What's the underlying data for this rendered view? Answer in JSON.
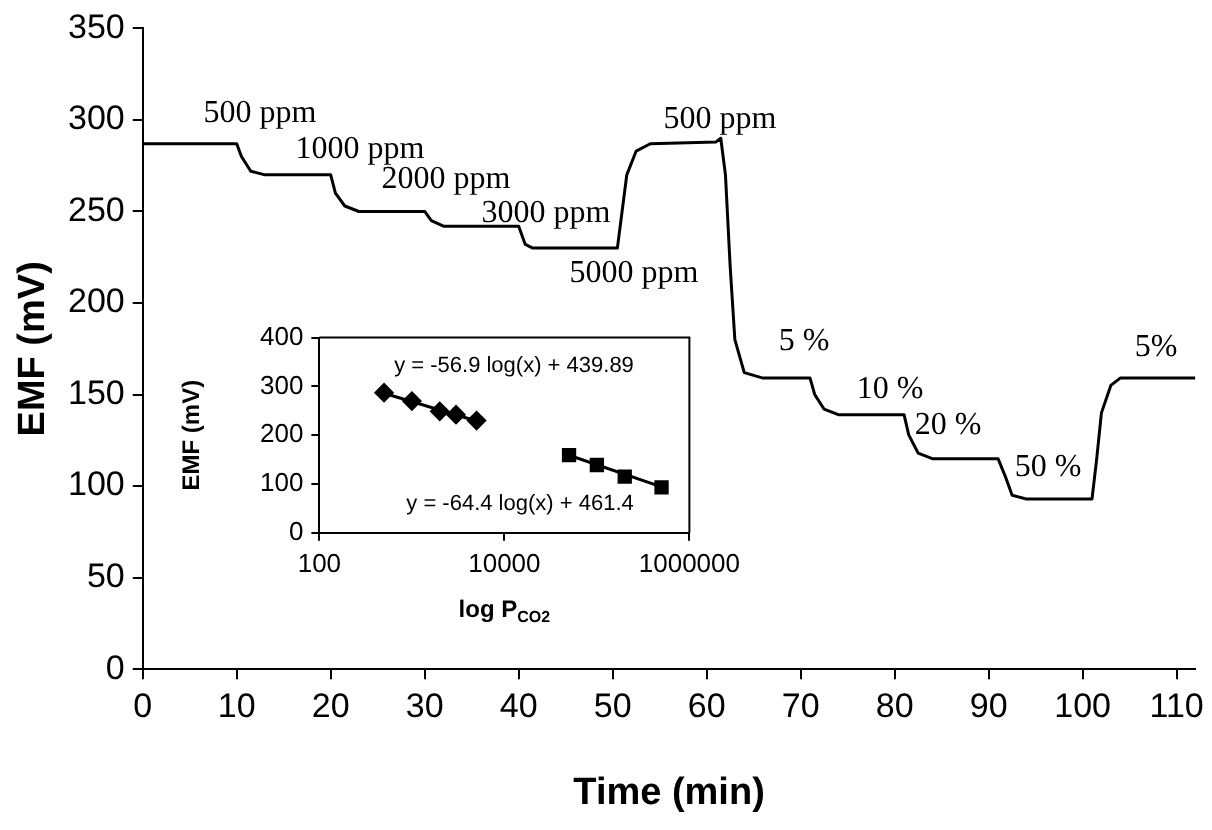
{
  "chart_data": [
    {
      "type": "line",
      "xlabel": "Time (min)",
      "ylabel": "EMF (mV)",
      "xlim": [
        0,
        112
      ],
      "ylim": [
        0,
        350
      ],
      "xticks": [
        0,
        10,
        20,
        30,
        40,
        50,
        60,
        70,
        80,
        90,
        100,
        110
      ],
      "yticks": [
        0,
        50,
        100,
        150,
        200,
        250,
        300,
        350
      ],
      "grid": false,
      "legend": false,
      "marker": "none",
      "series": [
        {
          "color": "#000000",
          "x": [
            0,
            10,
            10.5,
            11.5,
            13,
            20,
            20.5,
            21.5,
            23,
            30,
            30.7,
            32,
            40,
            40.7,
            41.5,
            50.5,
            51,
            51.5,
            52.5,
            54,
            61,
            61.5,
            62,
            62.5,
            63,
            64,
            66,
            71,
            71.5,
            72.5,
            74,
            81,
            81.5,
            82.5,
            84,
            91,
            91.8,
            92.5,
            94,
            101,
            101.5,
            102,
            103,
            104,
            112
          ],
          "values": [
            287,
            287,
            280,
            272,
            270,
            270,
            260,
            253,
            250,
            250,
            245,
            242,
            242,
            232,
            230,
            230,
            250,
            270,
            283,
            287,
            288,
            290,
            270,
            220,
            180,
            162,
            159,
            159,
            150,
            142,
            139,
            139,
            128,
            118,
            115,
            115,
            105,
            95,
            93,
            93,
            115,
            140,
            155,
            159,
            159
          ]
        }
      ],
      "annotations": [
        "500 ppm",
        "1000 ppm",
        "2000 ppm",
        "3000 ppm",
        "5000 ppm",
        "500 ppm",
        "5 %",
        "10 %",
        "20 %",
        "50 %",
        "5%"
      ]
    },
    {
      "type": "scatter",
      "xlabel": "log P$_{CO2}$",
      "ylabel": "EMF (mV)",
      "log": "x",
      "xlim": [
        100,
        1000000
      ],
      "ylim": [
        0,
        400
      ],
      "xticks": [
        100,
        10000,
        1000000
      ],
      "yticks": [
        0,
        100,
        200,
        300,
        400
      ],
      "grid": false,
      "legend": false,
      "series": [
        {
          "color": "#000000",
          "marker": "diamond",
          "x": [
            500,
            1000,
            2000,
            3000,
            5000
          ],
          "values": [
            287,
            270,
            249,
            242,
            230
          ]
        },
        {
          "color": "#000000",
          "marker": "square",
          "x": [
            50000,
            100000,
            200000,
            500000
          ],
          "values": [
            159,
            139,
            115,
            93
          ]
        },
        {
          "type": "line",
          "color": "#000000",
          "marker": "none",
          "x": [
            500,
            5000
          ],
          "values": [
            286,
            229
          ]
        },
        {
          "type": "line",
          "color": "#000000",
          "marker": "none",
          "x": [
            50000,
            500000
          ],
          "values": [
            159,
            94
          ]
        }
      ],
      "annotations": [
        "y = -56.9 log(x) + 439.89",
        "y = -64.4 log(x) + 461.4"
      ]
    }
  ]
}
